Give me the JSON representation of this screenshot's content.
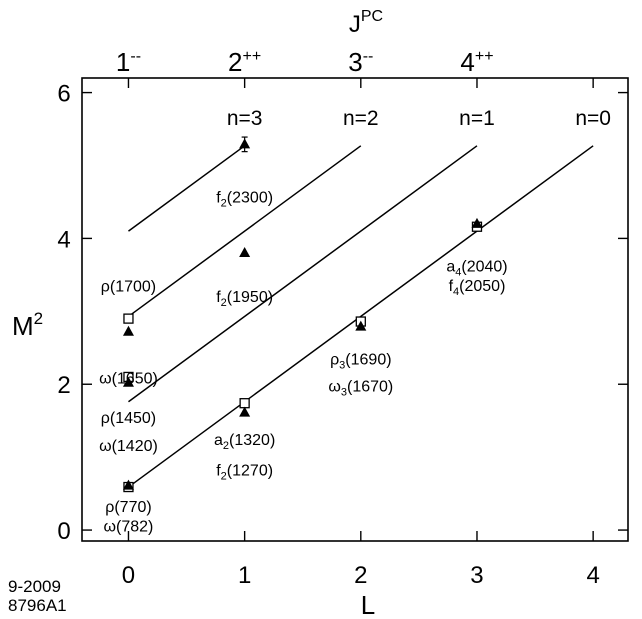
{
  "chart_data": {
    "type": "scatter",
    "xlabel": "L",
    "ylabel": "M",
    "ylabel_sup": "2",
    "top_axis_label": "J",
    "top_axis_label_sup": "PC",
    "xlim": [
      -0.4,
      4.3
    ],
    "ylim": [
      -0.15,
      6.2
    ],
    "x_ticks": [
      0,
      1,
      2,
      3,
      4
    ],
    "x_tick_labels": [
      "0",
      "1",
      "2",
      "3",
      "4"
    ],
    "y_ticks": [
      0,
      2,
      4,
      6
    ],
    "y_tick_labels": [
      "0",
      "2",
      "4",
      "6"
    ],
    "top_ticks": [
      0,
      1,
      2,
      3
    ],
    "top_tick_labels": [
      {
        "main": "1",
        "sup": "--"
      },
      {
        "main": "2",
        "sup": "++"
      },
      {
        "main": "3",
        "sup": "--"
      },
      {
        "main": "4",
        "sup": "++"
      }
    ],
    "trajectories": [
      {
        "label": "n=0",
        "x": [
          0,
          4
        ],
        "y": [
          0.59,
          5.27
        ]
      },
      {
        "label": "n=1",
        "x": [
          0,
          3
        ],
        "y": [
          1.76,
          5.27
        ]
      },
      {
        "label": "n=2",
        "x": [
          0,
          2
        ],
        "y": [
          2.93,
          5.27
        ]
      },
      {
        "label": "n=3",
        "x": [
          0,
          1
        ],
        "y": [
          4.1,
          5.27
        ]
      }
    ],
    "series": [
      {
        "marker": "square",
        "points": [
          {
            "x": 0,
            "y": 0.59,
            "sub": "",
            "name": "ρ(770)"
          },
          {
            "x": 1,
            "y": 1.74,
            "sub": "2",
            "name": "a(1320)"
          },
          {
            "x": 2,
            "y": 2.86,
            "sub": "3",
            "name": "ρ(1690)"
          },
          {
            "x": 3,
            "y": 4.16,
            "sub": "4",
            "name": "a(2040)"
          },
          {
            "x": 0,
            "y": 2.1,
            "sub": "",
            "name": "ρ(1450)"
          },
          {
            "x": 0,
            "y": 2.9,
            "sub": "",
            "name": "ρ(1700)"
          }
        ]
      },
      {
        "marker": "triangle",
        "points": [
          {
            "x": 0,
            "y": 0.61,
            "sub": "",
            "name": "ω(782)"
          },
          {
            "x": 1,
            "y": 1.61,
            "sub": "2",
            "name": "f(1270)"
          },
          {
            "x": 2,
            "y": 2.79,
            "sub": "3",
            "name": "ω(1670)"
          },
          {
            "x": 3,
            "y": 4.2,
            "sub": "4",
            "name": "f(2050)"
          },
          {
            "x": 0,
            "y": 2.02,
            "sub": "",
            "name": "ω(1420)"
          },
          {
            "x": 0,
            "y": 2.72,
            "sub": "",
            "name": "ω(1650)"
          },
          {
            "x": 1,
            "y": 3.8,
            "sub": "2",
            "name": "f(1950)"
          },
          {
            "x": 1,
            "y": 5.29,
            "sub": "2",
            "name": "f(2300)",
            "err": 0.1
          }
        ]
      }
    ]
  },
  "footer": {
    "line1": "9-2009",
    "line2": "8796A1"
  }
}
